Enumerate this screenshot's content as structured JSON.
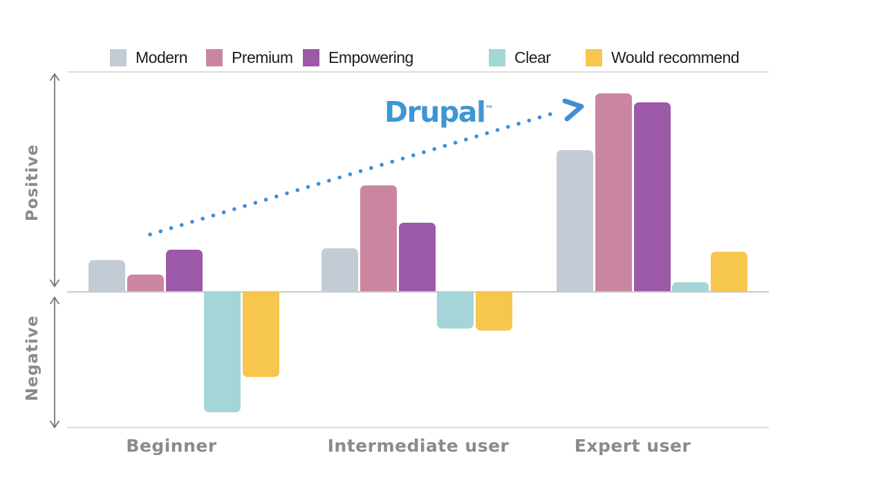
{
  "legend": {
    "items": [
      {
        "label": "Modern",
        "color": "#c3ccd5"
      },
      {
        "label": "Premium",
        "color": "#ca86a1"
      },
      {
        "label": "Empowering",
        "color": "#9c59a8"
      },
      {
        "label": "Clear",
        "color": "#a5d5d8"
      },
      {
        "label": "Would recommend",
        "color": "#f6c64f"
      }
    ]
  },
  "axis": {
    "positive_label": "Positive",
    "negative_label": "Negative",
    "text_color": "#8b8b8b"
  },
  "annotation": {
    "logo_text": "Drupal",
    "logo_tm": "™",
    "logo_color": "#3e96d2",
    "arrow_color": "#3e8fd4"
  },
  "chart_data": {
    "type": "bar",
    "title": "",
    "categories": [
      "Beginner",
      "Intermediate user",
      "Expert user"
    ],
    "series": [
      {
        "name": "Modern",
        "color": "#c3ccd5",
        "values": [
          14,
          19.5,
          64
        ]
      },
      {
        "name": "Premium",
        "color": "#ca86a1",
        "values": [
          7.5,
          48,
          90
        ]
      },
      {
        "name": "Empowering",
        "color": "#9c59a8",
        "values": [
          19,
          31,
          86
        ]
      },
      {
        "name": "Clear",
        "color": "#a5d5d8",
        "values": [
          -55,
          -17,
          4
        ]
      },
      {
        "name": "Would recommend",
        "color": "#f6c64f",
        "values": [
          -39,
          -18,
          18
        ]
      }
    ],
    "value_scale": "relative units, 100 = full positive axis height",
    "ylim": [
      -62,
      100
    ],
    "y_axis_zones": [
      "Positive",
      "Negative"
    ],
    "xlabel": "",
    "ylabel": "",
    "grid": false,
    "legend_position": "top"
  }
}
